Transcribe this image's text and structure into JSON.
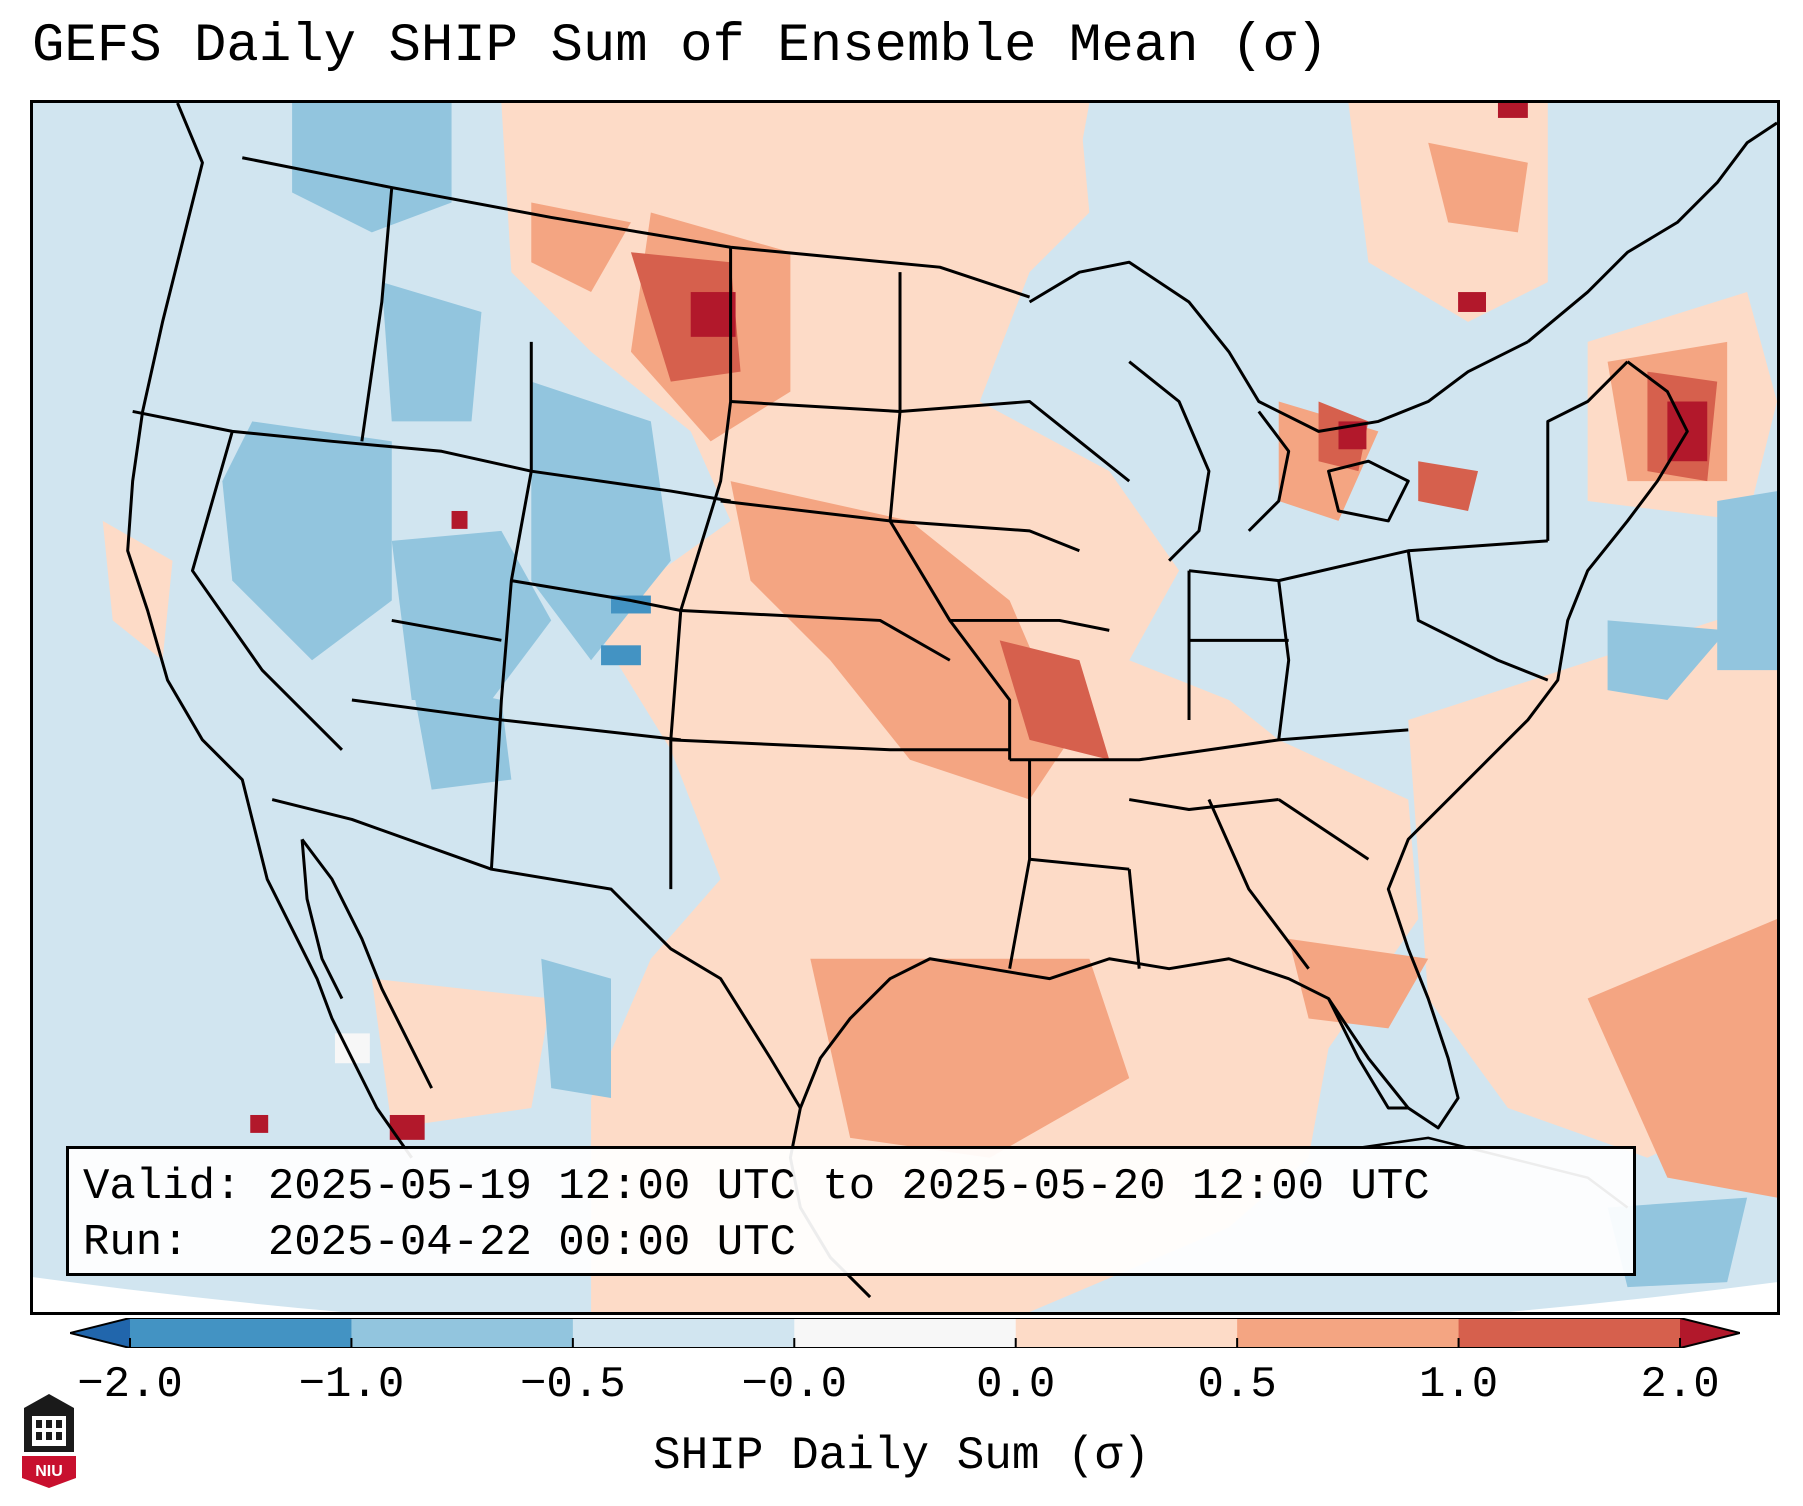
{
  "title": "GEFS Daily SHIP Sum of Ensemble Mean (σ)",
  "info": {
    "valid_label": "Valid:",
    "valid_value": "2025-05-19 12:00 UTC to 2025-05-20 12:00 UTC",
    "run_label": "Run:",
    "run_value": "2025-04-22 00:00 UTC"
  },
  "colorbar": {
    "label": "SHIP Daily Sum (σ)",
    "ticks": [
      "−2.0",
      "−1.0",
      "−0.5",
      "−0.0",
      "0.0",
      "0.5",
      "1.0",
      "2.0"
    ],
    "bins": [
      {
        "range": "< -2.0",
        "color": "#2166ac"
      },
      {
        "range": "-2.0 to -1.0",
        "color": "#4393c3"
      },
      {
        "range": "-1.0 to -0.5",
        "color": "#92c5de"
      },
      {
        "range": "-0.5 to -0.0",
        "color": "#d1e5f0"
      },
      {
        "range": "-0.0 to 0.0",
        "color": "#f7f7f7"
      },
      {
        "range": "0.0 to 0.5",
        "color": "#fddbc7"
      },
      {
        "range": "0.5 to 1.0",
        "color": "#f4a582"
      },
      {
        "range": "1.0 to 2.0",
        "color": "#d6604d"
      },
      {
        "range": "> 2.0",
        "color": "#b2182b"
      }
    ]
  },
  "map": {
    "region": "Continental United States",
    "projection": "Lambert Conformal",
    "features": [
      "coastlines",
      "state borders",
      "country borders"
    ]
  },
  "logo": {
    "text": "NIU"
  }
}
